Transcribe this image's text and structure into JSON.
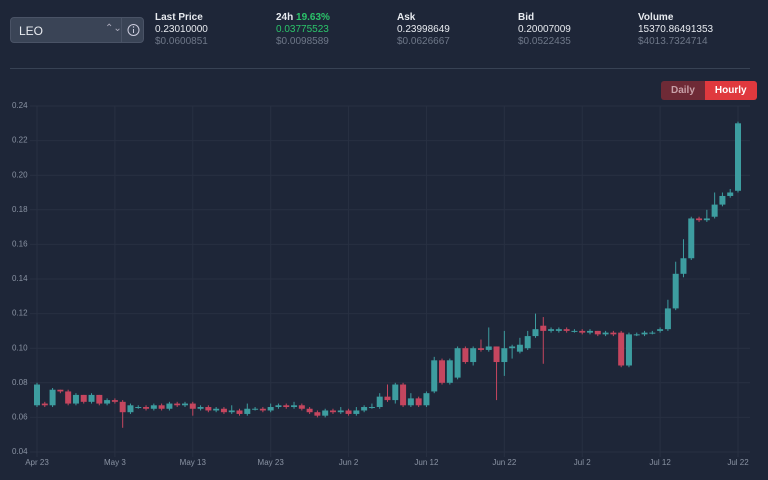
{
  "header": {
    "pair": "LEO",
    "stats": [
      {
        "label": "Last Price",
        "value": "0.23010000",
        "sub": "$0.0600851"
      },
      {
        "label": "24h",
        "change": "19.63%",
        "value": "0.03775523",
        "sub": "$0.0098589"
      },
      {
        "label": "Ask",
        "value": "0.23998649",
        "sub": "$0.0626667"
      },
      {
        "label": "Bid",
        "value": "0.20007009",
        "sub": "$0.0522435"
      },
      {
        "label": "Volume",
        "value": "15370.86491353",
        "sub": "$4013.7324714"
      }
    ],
    "buttons": [
      "Daily",
      "Hourly"
    ]
  },
  "chart_data": {
    "type": "candlestick",
    "up_color": "#3d9da0",
    "down_color": "#c5465f",
    "grid": true,
    "xlim": [
      0,
      90
    ],
    "xticks": [
      {
        "value": 0,
        "label": "Apr 23"
      },
      {
        "value": 10,
        "label": "May 3"
      },
      {
        "value": 20,
        "label": "May 13"
      },
      {
        "value": 30,
        "label": "May 23"
      },
      {
        "value": 40,
        "label": "Jun 2"
      },
      {
        "value": 50,
        "label": "Jun 12"
      },
      {
        "value": 60,
        "label": "Jun 22"
      },
      {
        "value": 70,
        "label": "Jul 2"
      },
      {
        "value": 80,
        "label": "Jul 12"
      },
      {
        "value": 90,
        "label": "Jul 22"
      }
    ],
    "ylim": [
      0.04,
      0.24
    ],
    "yticks": [
      0.04,
      0.06,
      0.08,
      {
        "value": 0.1,
        "label": "0.10"
      },
      0.12,
      0.14,
      0.16,
      0.18,
      {
        "value": 0.2,
        "label": "0.20"
      },
      0.22,
      0.24
    ],
    "open": [
      0.067,
      0.068,
      0.067,
      0.076,
      0.075,
      0.068,
      0.073,
      0.069,
      0.073,
      0.068,
      0.07,
      0.069,
      0.063,
      0.066,
      0.066,
      0.065,
      0.067,
      0.065,
      0.068,
      0.067,
      0.068,
      0.065,
      0.066,
      0.064,
      0.065,
      0.063,
      0.064,
      0.062,
      0.065,
      0.065,
      0.064,
      0.066,
      0.067,
      0.066,
      0.067,
      0.065,
      0.063,
      0.061,
      0.064,
      0.063,
      0.064,
      0.062,
      0.064,
      0.066,
      0.066,
      0.072,
      0.07,
      0.079,
      0.067,
      0.071,
      0.067,
      0.075,
      0.093,
      0.08,
      0.083,
      0.1,
      0.092,
      0.1,
      0.099,
      0.101,
      0.092,
      0.1,
      0.098,
      0.1,
      0.107,
      0.113,
      0.11,
      0.11,
      0.111,
      0.11,
      0.11,
      0.109,
      0.11,
      0.108,
      0.109,
      0.109,
      0.09,
      0.108,
      0.108,
      0.109,
      0.11,
      0.111,
      0.123,
      0.143,
      0.152,
      0.175,
      0.174,
      0.176,
      0.183,
      0.188,
      0.191
    ],
    "high": [
      0.08,
      0.069,
      0.077,
      0.076,
      0.076,
      0.074,
      0.073,
      0.074,
      0.073,
      0.071,
      0.071,
      0.07,
      0.068,
      0.067,
      0.067,
      0.068,
      0.068,
      0.069,
      0.069,
      0.069,
      0.069,
      0.067,
      0.067,
      0.066,
      0.066,
      0.067,
      0.065,
      0.068,
      0.066,
      0.066,
      0.068,
      0.068,
      0.068,
      0.069,
      0.068,
      0.066,
      0.064,
      0.065,
      0.065,
      0.066,
      0.065,
      0.066,
      0.067,
      0.068,
      0.074,
      0.079,
      0.08,
      0.08,
      0.074,
      0.072,
      0.075,
      0.095,
      0.094,
      0.094,
      0.101,
      0.101,
      0.101,
      0.105,
      0.112,
      0.101,
      0.11,
      0.102,
      0.106,
      0.11,
      0.12,
      0.118,
      0.112,
      0.112,
      0.112,
      0.111,
      0.111,
      0.111,
      0.11,
      0.11,
      0.11,
      0.11,
      0.109,
      0.109,
      0.11,
      0.11,
      0.112,
      0.128,
      0.15,
      0.163,
      0.176,
      0.176,
      0.18,
      0.19,
      0.19,
      0.192,
      0.231
    ],
    "low": [
      0.066,
      0.066,
      0.066,
      0.074,
      0.067,
      0.067,
      0.068,
      0.068,
      0.067,
      0.067,
      0.068,
      0.054,
      0.062,
      0.065,
      0.064,
      0.064,
      0.064,
      0.064,
      0.066,
      0.066,
      0.061,
      0.064,
      0.063,
      0.063,
      0.062,
      0.062,
      0.061,
      0.061,
      0.064,
      0.063,
      0.063,
      0.065,
      0.065,
      0.065,
      0.064,
      0.062,
      0.06,
      0.06,
      0.062,
      0.062,
      0.061,
      0.061,
      0.063,
      0.065,
      0.065,
      0.069,
      0.068,
      0.066,
      0.066,
      0.066,
      0.066,
      0.074,
      0.079,
      0.079,
      0.082,
      0.091,
      0.09,
      0.098,
      0.098,
      0.07,
      0.084,
      0.094,
      0.097,
      0.099,
      0.106,
      0.091,
      0.109,
      0.109,
      0.109,
      0.109,
      0.108,
      0.108,
      0.107,
      0.107,
      0.107,
      0.089,
      0.089,
      0.107,
      0.107,
      0.108,
      0.109,
      0.11,
      0.122,
      0.141,
      0.151,
      0.173,
      0.173,
      0.175,
      0.182,
      0.187,
      0.19
    ],
    "close": [
      0.079,
      0.067,
      0.076,
      0.075,
      0.068,
      0.073,
      0.069,
      0.073,
      0.068,
      0.07,
      0.069,
      0.063,
      0.067,
      0.066,
      0.065,
      0.067,
      0.065,
      0.068,
      0.067,
      0.068,
      0.065,
      0.066,
      0.064,
      0.065,
      0.063,
      0.064,
      0.062,
      0.065,
      0.065,
      0.064,
      0.066,
      0.067,
      0.066,
      0.067,
      0.065,
      0.063,
      0.061,
      0.064,
      0.063,
      0.064,
      0.062,
      0.064,
      0.066,
      0.066,
      0.072,
      0.07,
      0.079,
      0.067,
      0.071,
      0.067,
      0.074,
      0.093,
      0.08,
      0.093,
      0.1,
      0.092,
      0.1,
      0.099,
      0.101,
      0.092,
      0.1,
      0.101,
      0.102,
      0.107,
      0.111,
      0.11,
      0.111,
      0.111,
      0.11,
      0.11,
      0.109,
      0.11,
      0.108,
      0.109,
      0.108,
      0.09,
      0.108,
      0.108,
      0.109,
      0.109,
      0.111,
      0.123,
      0.143,
      0.152,
      0.175,
      0.174,
      0.175,
      0.183,
      0.188,
      0.19,
      0.23
    ]
  }
}
